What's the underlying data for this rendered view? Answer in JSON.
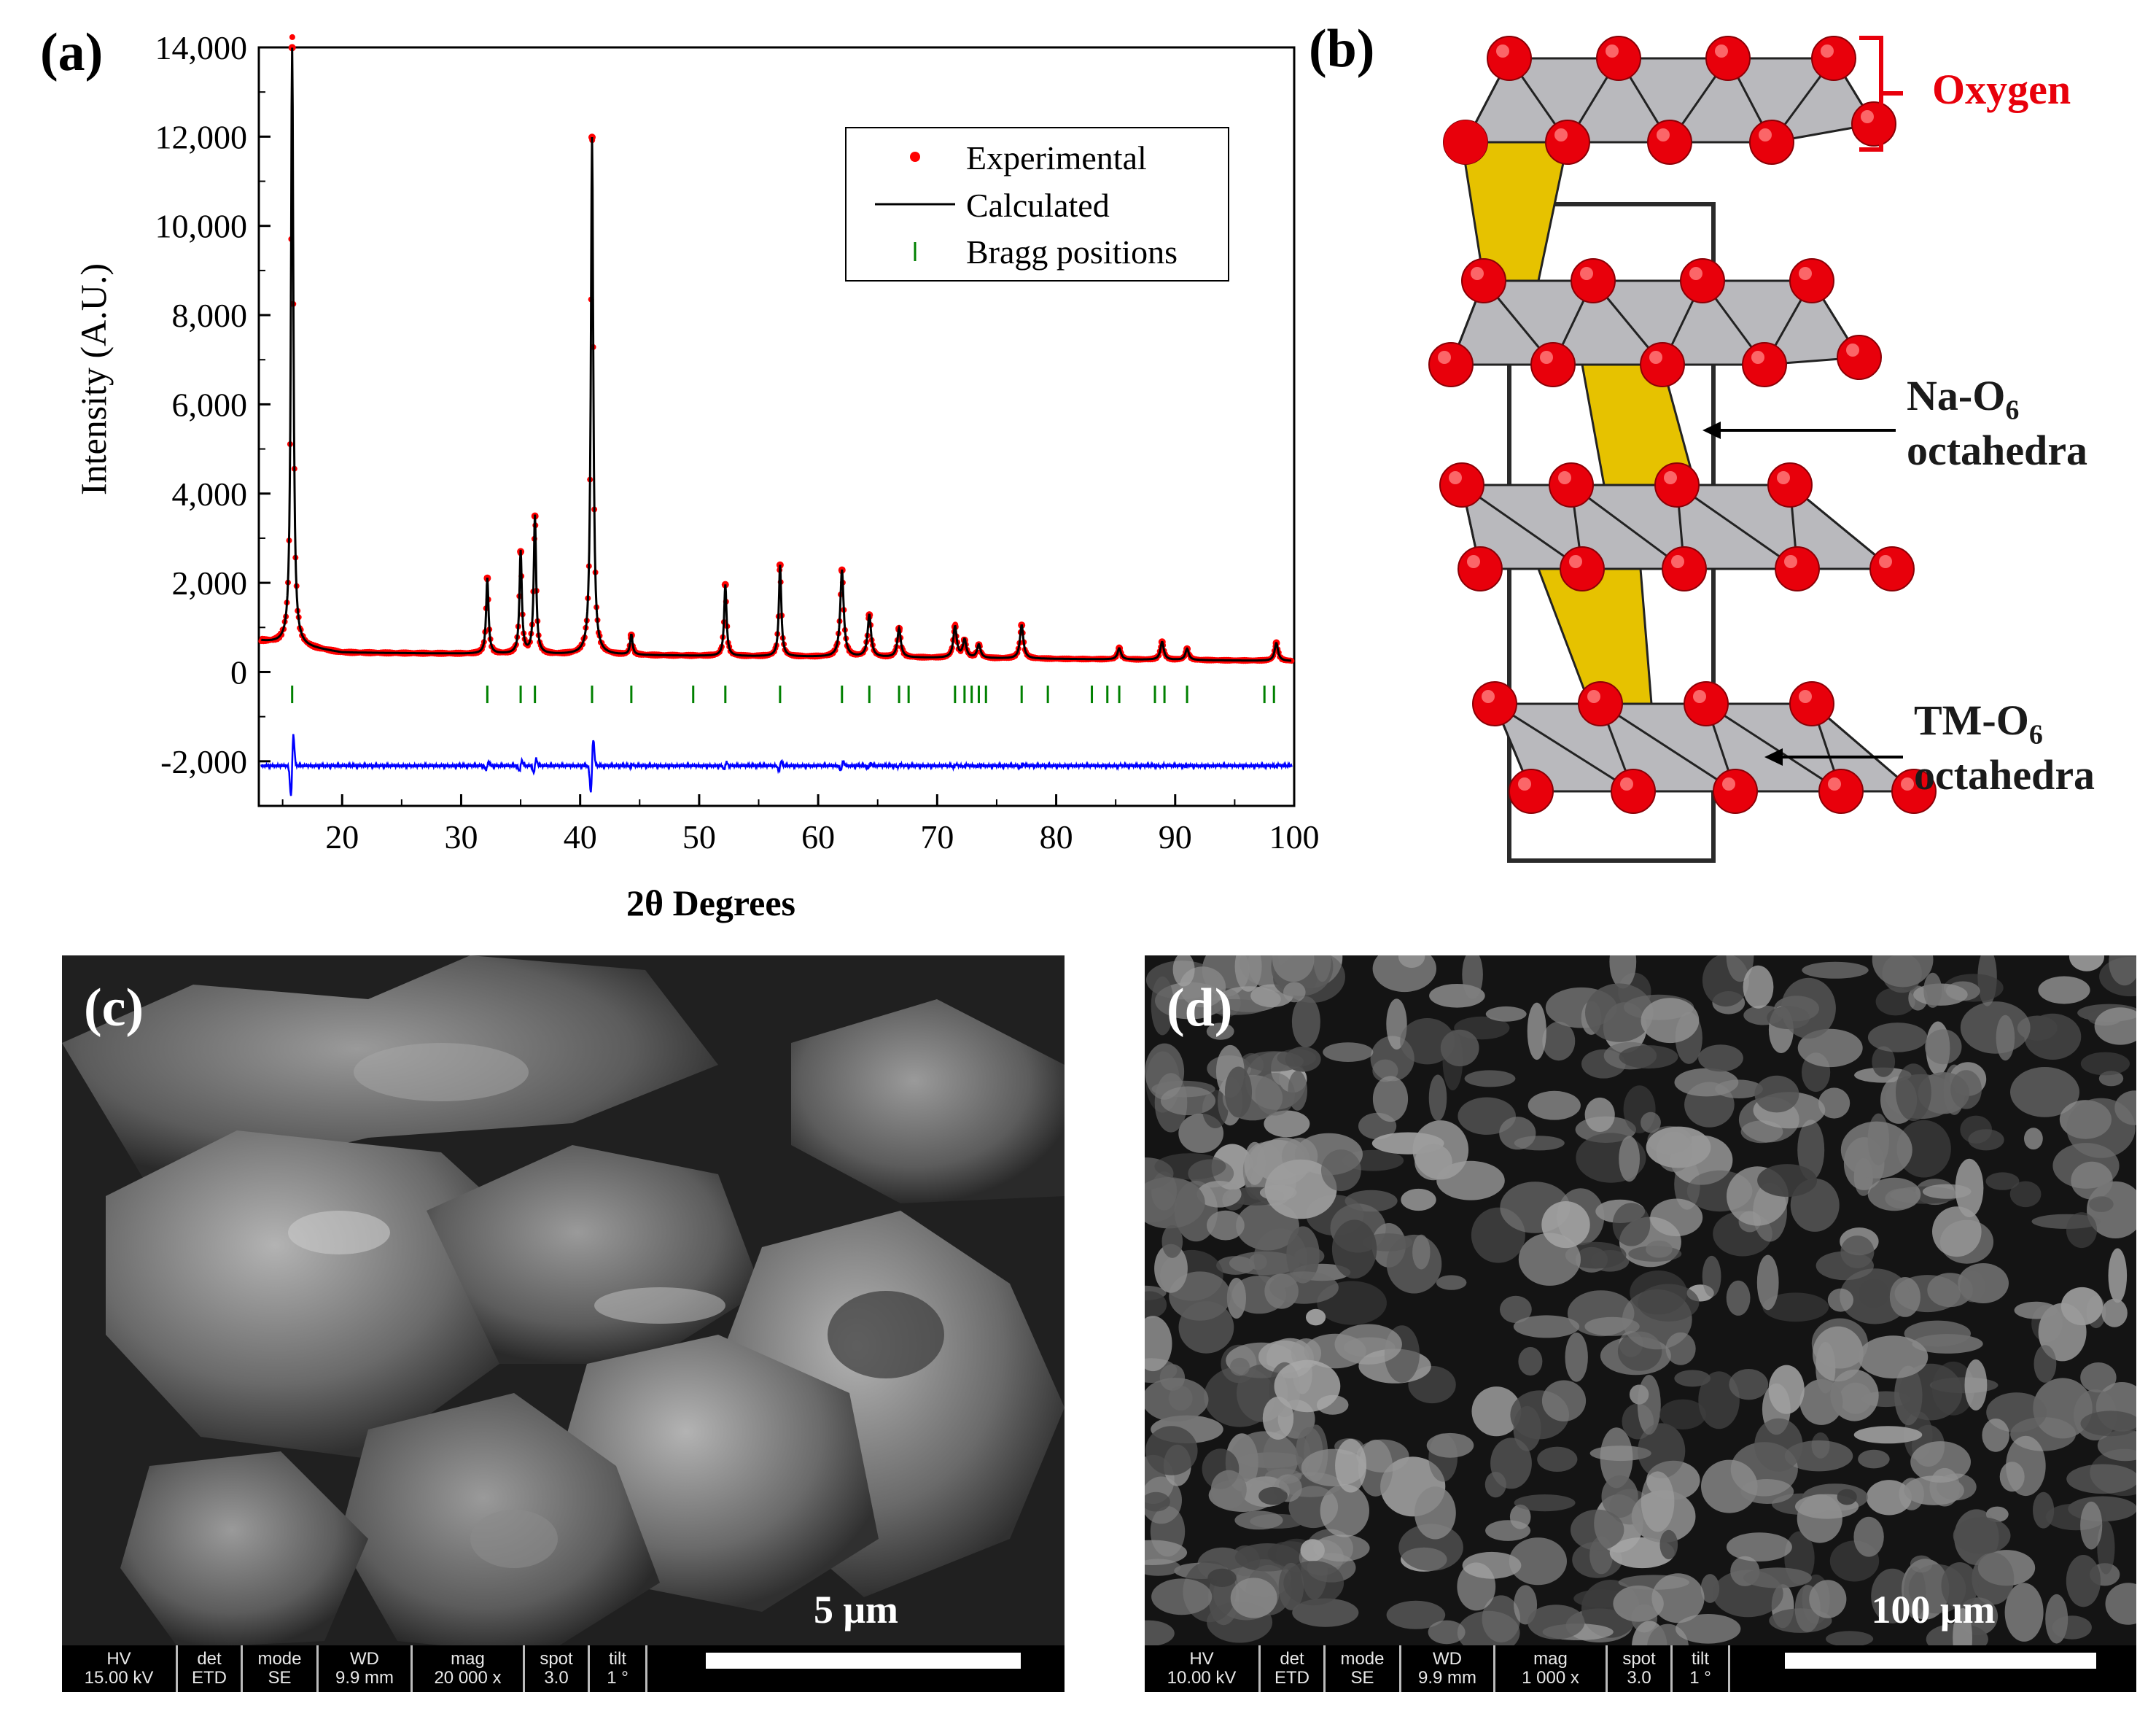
{
  "panels": {
    "a": "(a)",
    "b": "(b)",
    "c": "(c)",
    "d": "(d)"
  },
  "chart_data": {
    "type": "line",
    "xlabel": "2θ Degrees",
    "ylabel": "Intensity (A.U.)",
    "xlim": [
      13,
      100
    ],
    "ylim": [
      -3000,
      14000
    ],
    "x_ticks": [
      20,
      30,
      40,
      50,
      60,
      70,
      80,
      90,
      100
    ],
    "y_ticks": [
      -2000,
      0,
      2000,
      4000,
      6000,
      8000,
      10000,
      12000,
      14000
    ],
    "y_tick_labels": [
      "-2,000",
      "0",
      "2,000",
      "4,000",
      "6,000",
      "8,000",
      "10,000",
      "12,000",
      "14,000"
    ],
    "legend_position": "top-right",
    "legend": [
      "Experimental",
      "Calculated",
      "Bragg positions"
    ],
    "colors": {
      "experimental": "#ff0000",
      "calculated": "#000000",
      "bragg": "#008000",
      "difference": "#0000ff"
    },
    "background": 450,
    "peaks": [
      {
        "x": 15.8,
        "y": 13400
      },
      {
        "x": 32.2,
        "y": 1700
      },
      {
        "x": 35.0,
        "y": 2300
      },
      {
        "x": 36.2,
        "y": 3100
      },
      {
        "x": 41.0,
        "y": 11600
      },
      {
        "x": 44.3,
        "y": 450
      },
      {
        "x": 52.2,
        "y": 1600
      },
      {
        "x": 56.8,
        "y": 2050
      },
      {
        "x": 62.0,
        "y": 1950
      },
      {
        "x": 64.3,
        "y": 950
      },
      {
        "x": 66.8,
        "y": 650
      },
      {
        "x": 71.5,
        "y": 700
      },
      {
        "x": 72.3,
        "y": 400
      },
      {
        "x": 73.5,
        "y": 300
      },
      {
        "x": 77.1,
        "y": 750
      },
      {
        "x": 85.3,
        "y": 250
      },
      {
        "x": 88.9,
        "y": 400
      },
      {
        "x": 91.0,
        "y": 250
      },
      {
        "x": 98.5,
        "y": 400
      }
    ],
    "bragg_positions": [
      15.8,
      32.2,
      35.0,
      36.2,
      41.0,
      44.3,
      49.5,
      52.2,
      56.8,
      62.0,
      64.3,
      66.8,
      67.6,
      71.5,
      72.3,
      72.9,
      73.5,
      74.1,
      77.1,
      79.3,
      83.0,
      84.3,
      85.3,
      88.3,
      89.1,
      91.0,
      97.5,
      98.3
    ],
    "bragg_y": -500,
    "difference_offset": -2100
  },
  "structure": {
    "oxygen_label": "Oxygen",
    "na_label_1": "Na-O",
    "na_sub": "6",
    "na_label_2": "octahedra",
    "tm_label_1": "TM-O",
    "tm_sub": "6",
    "tm_label_2": "octahedra",
    "colors": {
      "oxygen": "#e8000b",
      "na_poly": "#e6c200",
      "tm_poly": "#b9b9bd",
      "label_oxygen": "#e8000b"
    }
  },
  "sem_c": {
    "hv_h": "HV",
    "hv_v": "15.00 kV",
    "det_h": "det",
    "det_v": "ETD",
    "mode_h": "mode",
    "mode_v": "SE",
    "wd_h": "WD",
    "wd_v": "9.9 mm",
    "mag_h": "mag",
    "mag_v": "20 000 x",
    "spot_h": "spot",
    "spot_v": "3.0",
    "tilt_h": "tilt",
    "tilt_v": "1 °",
    "scale": "5 μm"
  },
  "sem_d": {
    "hv_h": "HV",
    "hv_v": "10.00 kV",
    "det_h": "det",
    "det_v": "ETD",
    "mode_h": "mode",
    "mode_v": "SE",
    "wd_h": "WD",
    "wd_v": "9.9 mm",
    "mag_h": "mag",
    "mag_v": "1 000 x",
    "spot_h": "spot",
    "spot_v": "3.0",
    "tilt_h": "tilt",
    "tilt_v": "1 °",
    "scale": "100 μm"
  }
}
